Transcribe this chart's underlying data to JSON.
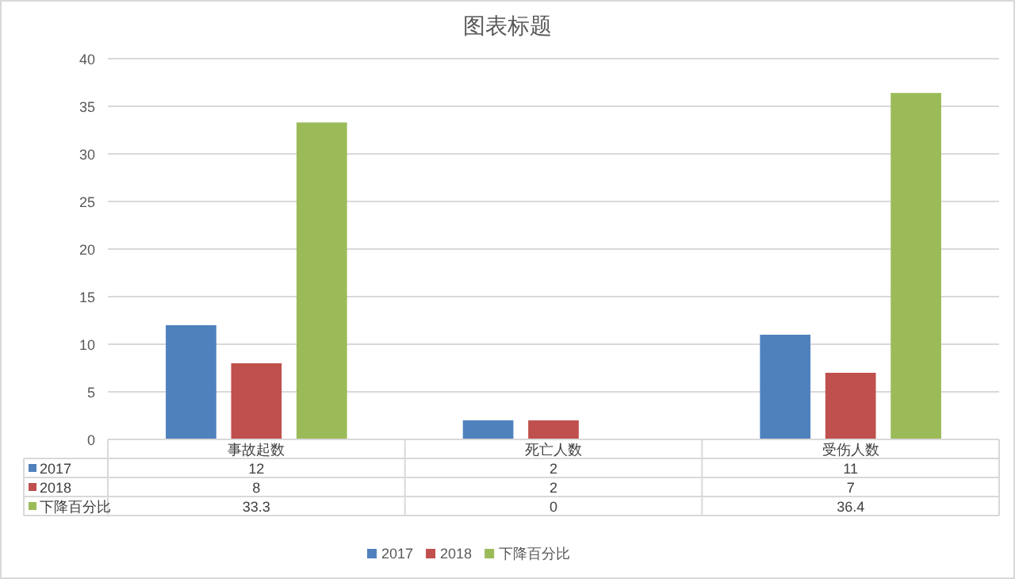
{
  "chart_data": {
    "type": "bar",
    "title": "图表标题",
    "categories": [
      "事故起数",
      "死亡人数",
      "受伤人数"
    ],
    "series": [
      {
        "name": "2017",
        "color": "#4f81bd",
        "values": [
          12,
          2,
          11
        ]
      },
      {
        "name": "2018",
        "color": "#c0504d",
        "values": [
          8,
          2,
          7
        ]
      },
      {
        "name": "下降百分比",
        "color": "#9bbb59",
        "values": [
          33.3,
          0,
          36.4
        ]
      }
    ],
    "ylim": [
      0,
      40
    ],
    "yticks": [
      0,
      5,
      10,
      15,
      20,
      25,
      30,
      35,
      40
    ],
    "grid": "y",
    "legend": "bottom",
    "data_labels": true
  }
}
